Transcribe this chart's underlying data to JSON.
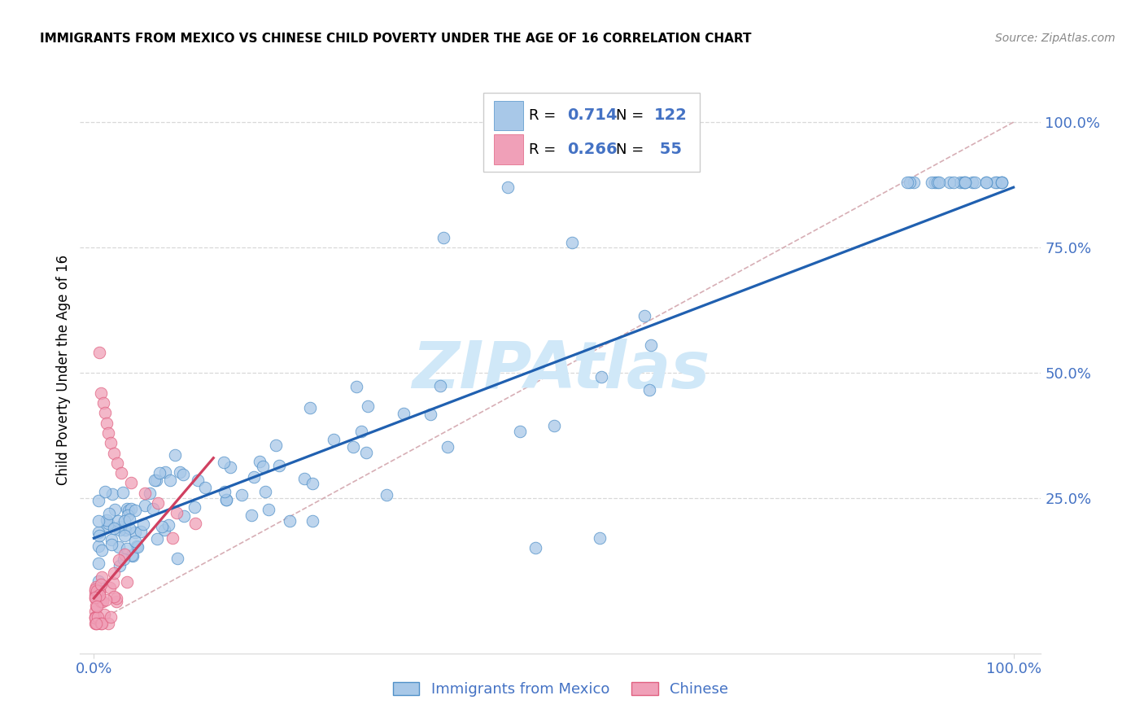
{
  "title": "IMMIGRANTS FROM MEXICO VS CHINESE CHILD POVERTY UNDER THE AGE OF 16 CORRELATION CHART",
  "source": "Source: ZipAtlas.com",
  "ylabel": "Child Poverty Under the Age of 16",
  "legend_blue_r": "R = 0.714",
  "legend_blue_n": "N = 122",
  "legend_pink_r": "R = 0.266",
  "legend_pink_n": "N =  55",
  "legend_label1": "Immigrants from Mexico",
  "legend_label2": "Chinese",
  "blue_fill": "#a8c8e8",
  "blue_edge": "#5090c8",
  "pink_fill": "#f0a0b8",
  "pink_edge": "#e06080",
  "blue_line_color": "#2060b0",
  "pink_line_color": "#d04060",
  "diag_color": "#d0a0a8",
  "grid_color": "#d8d8d8",
  "watermark": "ZIPAtlas",
  "watermark_color": "#d0e8f8",
  "tick_color": "#4472c4",
  "title_fontsize": 11,
  "axis_fontsize": 13,
  "legend_r_color": "#000000",
  "legend_n_color": "#4472c4",
  "xlim": [
    0.0,
    1.0
  ],
  "ylim": [
    0.0,
    1.0
  ],
  "x_ticks": [
    0.0,
    1.0
  ],
  "x_tick_labels": [
    "0.0%",
    "100.0%"
  ],
  "y_ticks_right": [
    0.25,
    0.5,
    0.75,
    1.0
  ],
  "y_tick_labels_right": [
    "25.0%",
    "50.0%",
    "75.0%",
    "100.0%"
  ]
}
